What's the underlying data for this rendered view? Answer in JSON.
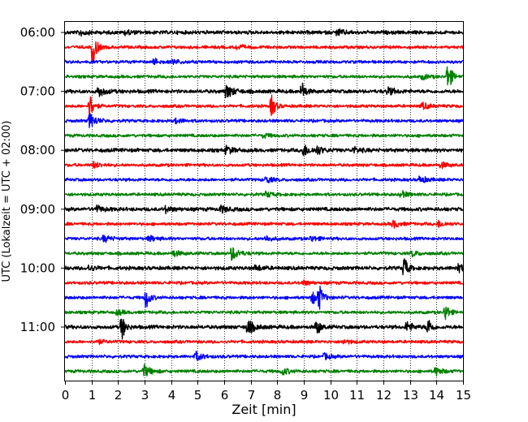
{
  "chart_data": {
    "type": "line",
    "title": "",
    "xlabel": "Zeit  [min]",
    "ylabel": "UTC (Lokalzeit = UTC + 02:00)",
    "xlim": [
      0,
      15
    ],
    "x_ticks": [
      "0",
      "1",
      "2",
      "3",
      "4",
      "5",
      "6",
      "7",
      "8",
      "9",
      "10",
      "11",
      "12",
      "13",
      "14",
      "15"
    ],
    "y_ticks": [
      "06:00",
      "07:00",
      "08:00",
      "09:00",
      "10:00",
      "11:00"
    ],
    "grid": "vertical dotted",
    "legend": "none",
    "colors": [
      "#000000",
      "#ff0000",
      "#0000ff",
      "#008000"
    ],
    "rows": [
      {
        "start": "06:00",
        "color": "#000000",
        "events": [
          {
            "t": 0.6,
            "a": 0.35
          },
          {
            "t": 2.3,
            "a": 0.3
          },
          {
            "t": 10.3,
            "a": 0.35
          }
        ]
      },
      {
        "start": "06:15",
        "color": "#ff0000",
        "events": [
          {
            "t": 1.05,
            "a": 2.6
          },
          {
            "t": 6.5,
            "a": 0.3
          }
        ]
      },
      {
        "start": "06:30",
        "color": "#0000ff",
        "events": [
          {
            "t": 3.4,
            "a": 0.35
          },
          {
            "t": 4.1,
            "a": 0.3
          }
        ]
      },
      {
        "start": "06:45",
        "color": "#008000",
        "events": [
          {
            "t": 14.45,
            "a": 2.0
          },
          {
            "t": 13.5,
            "a": 0.3
          }
        ]
      },
      {
        "start": "07:00",
        "color": "#000000",
        "events": [
          {
            "t": 1.3,
            "a": 0.6
          },
          {
            "t": 6.1,
            "a": 0.9
          },
          {
            "t": 8.95,
            "a": 1.1
          },
          {
            "t": 12.2,
            "a": 0.45
          }
        ]
      },
      {
        "start": "07:15",
        "color": "#ff0000",
        "events": [
          {
            "t": 0.95,
            "a": 1.7
          },
          {
            "t": 7.8,
            "a": 1.5
          },
          {
            "t": 13.5,
            "a": 0.4
          }
        ]
      },
      {
        "start": "07:30",
        "color": "#0000ff",
        "events": [
          {
            "t": 0.95,
            "a": 0.9
          },
          {
            "t": 4.2,
            "a": 0.3
          }
        ]
      },
      {
        "start": "07:45",
        "color": "#008000",
        "events": [
          {
            "t": 7.5,
            "a": 0.25
          }
        ]
      },
      {
        "start": "08:00",
        "color": "#000000",
        "events": [
          {
            "t": 6.1,
            "a": 0.5
          },
          {
            "t": 9.0,
            "a": 0.75
          },
          {
            "t": 9.5,
            "a": 0.5
          },
          {
            "t": 10.9,
            "a": 0.35
          }
        ]
      },
      {
        "start": "08:15",
        "color": "#ff0000",
        "events": [
          {
            "t": 1.1,
            "a": 0.4
          },
          {
            "t": 14.2,
            "a": 0.35
          }
        ]
      },
      {
        "start": "08:30",
        "color": "#0000ff",
        "events": [
          {
            "t": 7.6,
            "a": 0.4
          },
          {
            "t": 13.4,
            "a": 0.45
          }
        ]
      },
      {
        "start": "08:45",
        "color": "#008000",
        "events": [
          {
            "t": 7.6,
            "a": 0.35
          },
          {
            "t": 12.7,
            "a": 0.4
          }
        ]
      },
      {
        "start": "09:00",
        "color": "#000000",
        "events": [
          {
            "t": 1.2,
            "a": 0.4
          },
          {
            "t": 3.8,
            "a": 0.4
          },
          {
            "t": 5.9,
            "a": 0.4
          }
        ]
      },
      {
        "start": "09:15",
        "color": "#ff0000",
        "events": [
          {
            "t": 12.4,
            "a": 0.45
          },
          {
            "t": 14.1,
            "a": 0.4
          }
        ]
      },
      {
        "start": "09:30",
        "color": "#0000ff",
        "events": [
          {
            "t": 1.5,
            "a": 0.4
          },
          {
            "t": 3.2,
            "a": 0.35
          },
          {
            "t": 7.6,
            "a": 0.35
          },
          {
            "t": 9.3,
            "a": 0.35
          }
        ]
      },
      {
        "start": "09:45",
        "color": "#008000",
        "events": [
          {
            "t": 4.1,
            "a": 0.4
          },
          {
            "t": 6.3,
            "a": 0.9
          },
          {
            "t": 13.1,
            "a": 0.35
          }
        ]
      },
      {
        "start": "10:00",
        "color": "#000000",
        "events": [
          {
            "t": 0.9,
            "a": 0.35
          },
          {
            "t": 7.2,
            "a": 0.35
          },
          {
            "t": 12.8,
            "a": 1.4
          },
          {
            "t": 14.8,
            "a": 0.5
          }
        ]
      },
      {
        "start": "10:15",
        "color": "#ff0000",
        "events": [
          {
            "t": 9.0,
            "a": 0.3
          }
        ]
      },
      {
        "start": "10:30",
        "color": "#0000ff",
        "events": [
          {
            "t": 3.05,
            "a": 1.6
          },
          {
            "t": 9.35,
            "a": 0.8
          },
          {
            "t": 9.6,
            "a": 1.3
          }
        ]
      },
      {
        "start": "10:45",
        "color": "#008000",
        "events": [
          {
            "t": 14.35,
            "a": 1.2
          },
          {
            "t": 2.0,
            "a": 0.3
          }
        ]
      },
      {
        "start": "11:00",
        "color": "#000000",
        "events": [
          {
            "t": 2.15,
            "a": 1.6
          },
          {
            "t": 6.9,
            "a": 0.9
          },
          {
            "t": 9.5,
            "a": 1.1
          },
          {
            "t": 12.9,
            "a": 0.6
          },
          {
            "t": 13.7,
            "a": 1.1
          }
        ]
      },
      {
        "start": "11:15",
        "color": "#ff0000",
        "events": [
          {
            "t": 1.2,
            "a": 0.3
          },
          {
            "t": 10.5,
            "a": 0.3
          }
        ]
      },
      {
        "start": "11:30",
        "color": "#0000ff",
        "events": [
          {
            "t": 4.95,
            "a": 0.6
          },
          {
            "t": 9.8,
            "a": 0.35
          }
        ]
      },
      {
        "start": "11:45",
        "color": "#008000",
        "events": [
          {
            "t": 3.0,
            "a": 0.8
          },
          {
            "t": 8.2,
            "a": 0.45
          },
          {
            "t": 14.0,
            "a": 0.5
          }
        ]
      }
    ]
  }
}
